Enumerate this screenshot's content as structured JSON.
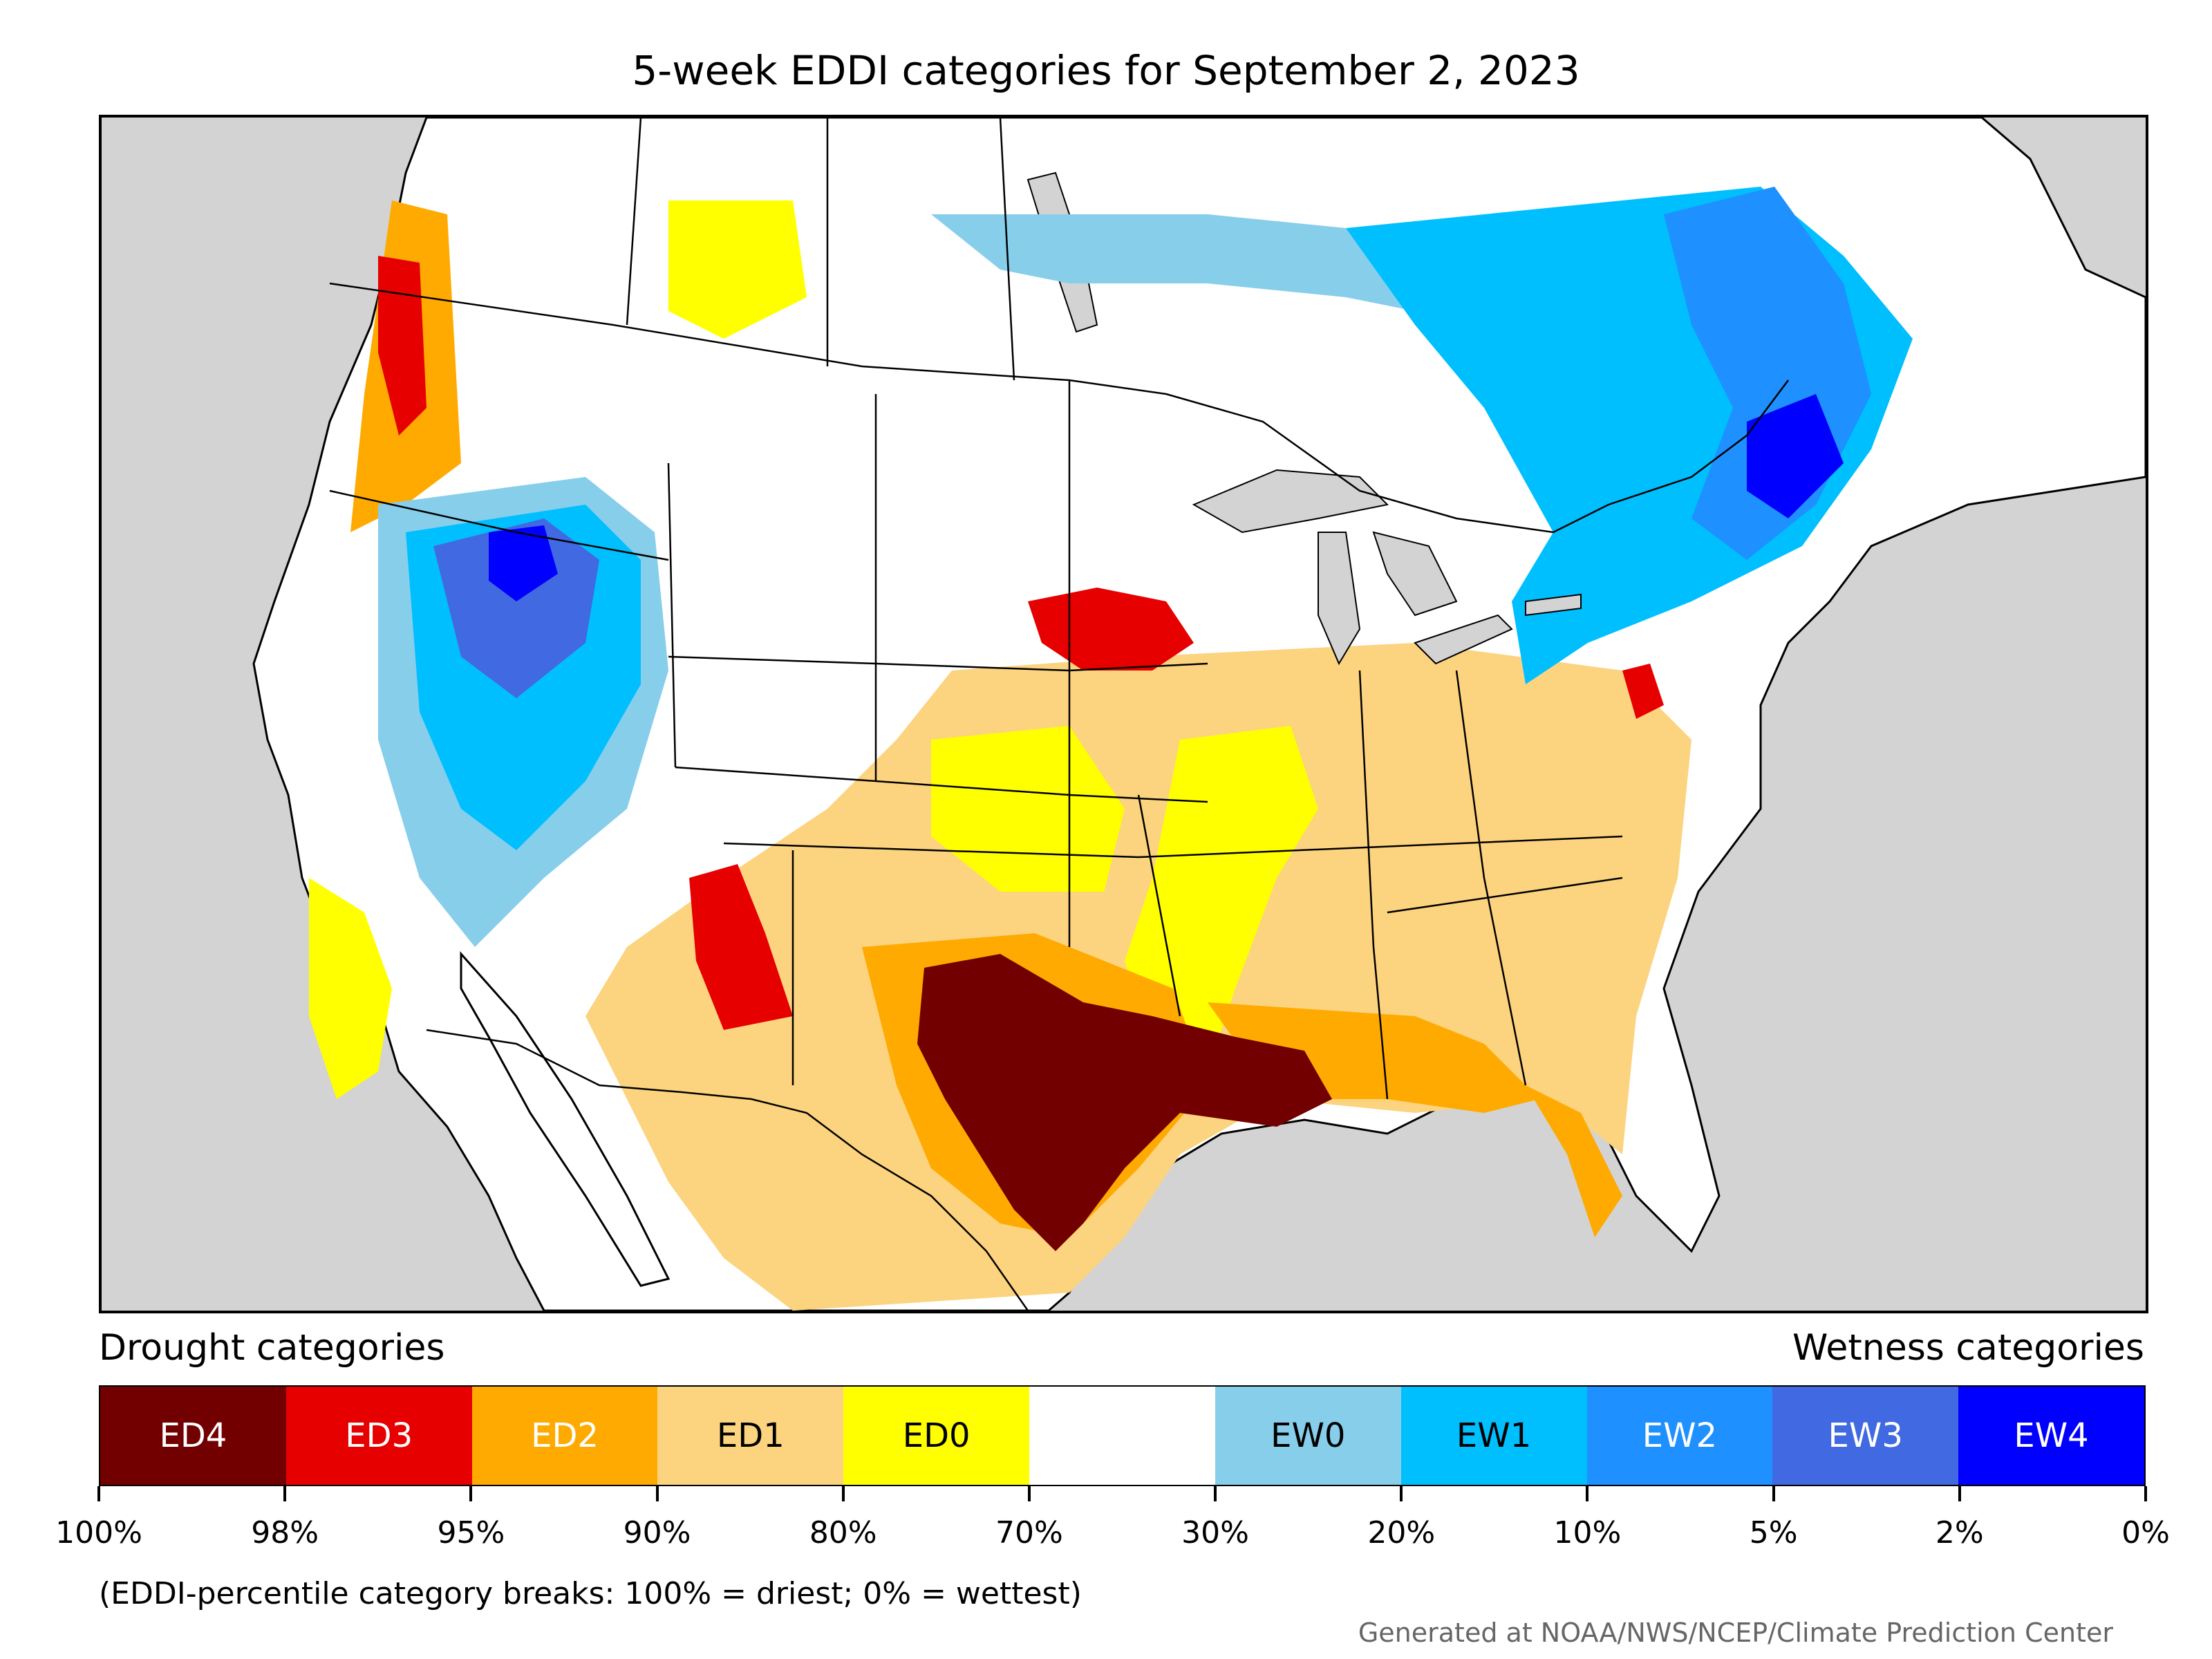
{
  "title": "5-week EDDI categories for September 2, 2023",
  "legend": {
    "drought_heading": "Drought categories",
    "wetness_heading": "Wetness categories",
    "categories": [
      {
        "label": "ED4",
        "color": "#730000",
        "text_color": "#ffffff"
      },
      {
        "label": "ED3",
        "color": "#e60000",
        "text_color": "#ffffff"
      },
      {
        "label": "ED2",
        "color": "#ffaa00",
        "text_color": "#ffffff"
      },
      {
        "label": "ED1",
        "color": "#fcd37f",
        "text_color": "#000000"
      },
      {
        "label": "ED0",
        "color": "#ffff00",
        "text_color": "#000000"
      },
      {
        "label": "",
        "color": "#ffffff",
        "text_color": "#000000"
      },
      {
        "label": "EW0",
        "color": "#87ceeb",
        "text_color": "#000000"
      },
      {
        "label": "EW1",
        "color": "#00bfff",
        "text_color": "#000000"
      },
      {
        "label": "EW2",
        "color": "#1e90ff",
        "text_color": "#ffffff"
      },
      {
        "label": "EW3",
        "color": "#4169e1",
        "text_color": "#ffffff"
      },
      {
        "label": "EW4",
        "color": "#0000ff",
        "text_color": "#ffffff"
      }
    ],
    "breaks": [
      "100%",
      "98%",
      "95%",
      "90%",
      "80%",
      "70%",
      "30%",
      "20%",
      "10%",
      "5%",
      "2%",
      "0%"
    ]
  },
  "footnote": "(EDDI-percentile category breaks: 100% = driest; 0% = wettest)",
  "credit": "Generated at NOAA/NWS/NCEP/Climate Prediction Center",
  "map": {
    "background_color": "#d3d3d3",
    "land_color": "#ffffff",
    "regions": [
      {
        "name": "texas-louisiana-ed4",
        "category": "ED4"
      },
      {
        "name": "iowa-ed3",
        "category": "ED3"
      },
      {
        "name": "pacific-northwest-ed3",
        "category": "ED3"
      },
      {
        "name": "new-mexico-ed3",
        "category": "ED3"
      },
      {
        "name": "virginia-ed3",
        "category": "ED3"
      },
      {
        "name": "great-basin-ew3",
        "category": "EW3"
      },
      {
        "name": "quebec-ew4",
        "category": "EW4"
      }
    ]
  }
}
